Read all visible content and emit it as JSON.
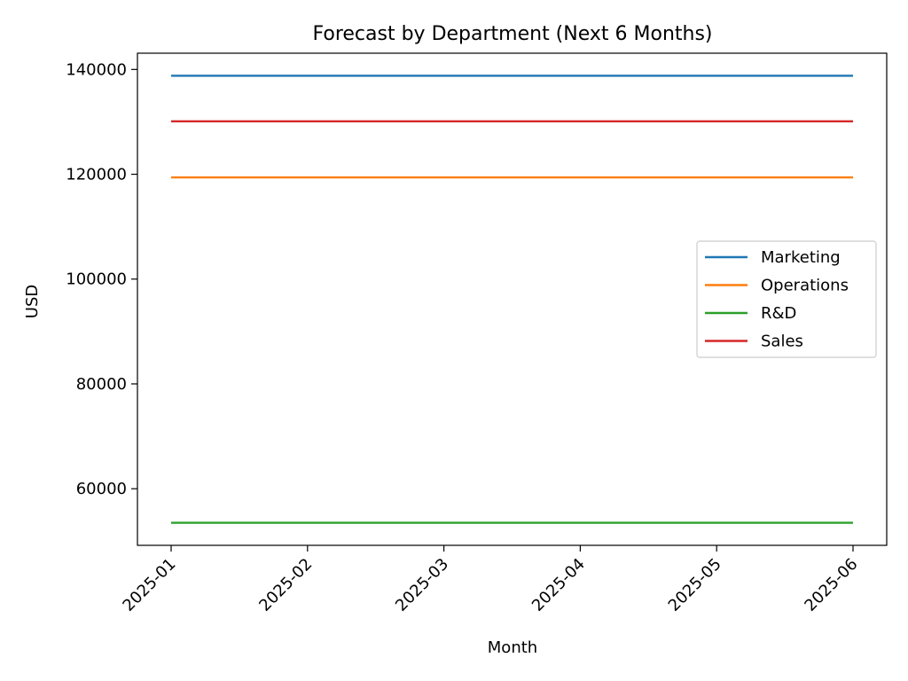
{
  "chart_data": {
    "type": "line",
    "title": "Forecast by Department (Next 6 Months)",
    "xlabel": "Month",
    "ylabel": "USD",
    "categories": [
      "2025-01",
      "2025-02",
      "2025-03",
      "2025-04",
      "2025-05",
      "2025-06"
    ],
    "series": [
      {
        "name": "Marketing",
        "color": "#1f77b4",
        "values": [
          138800,
          138800,
          138800,
          138800,
          138800,
          138800
        ]
      },
      {
        "name": "Operations",
        "color": "#ff7f0e",
        "values": [
          119400,
          119400,
          119400,
          119400,
          119400,
          119400
        ]
      },
      {
        "name": "R&D",
        "color": "#2ca02c",
        "values": [
          53500,
          53500,
          53500,
          53500,
          53500,
          53500
        ]
      },
      {
        "name": "Sales",
        "color": "#d62728",
        "values": [
          130100,
          130100,
          130100,
          130100,
          130100,
          130100
        ]
      }
    ],
    "yticks": [
      60000,
      80000,
      100000,
      120000,
      140000
    ],
    "ylim": [
      49200,
      143100
    ],
    "grid": false,
    "legend_position": "center-right"
  }
}
